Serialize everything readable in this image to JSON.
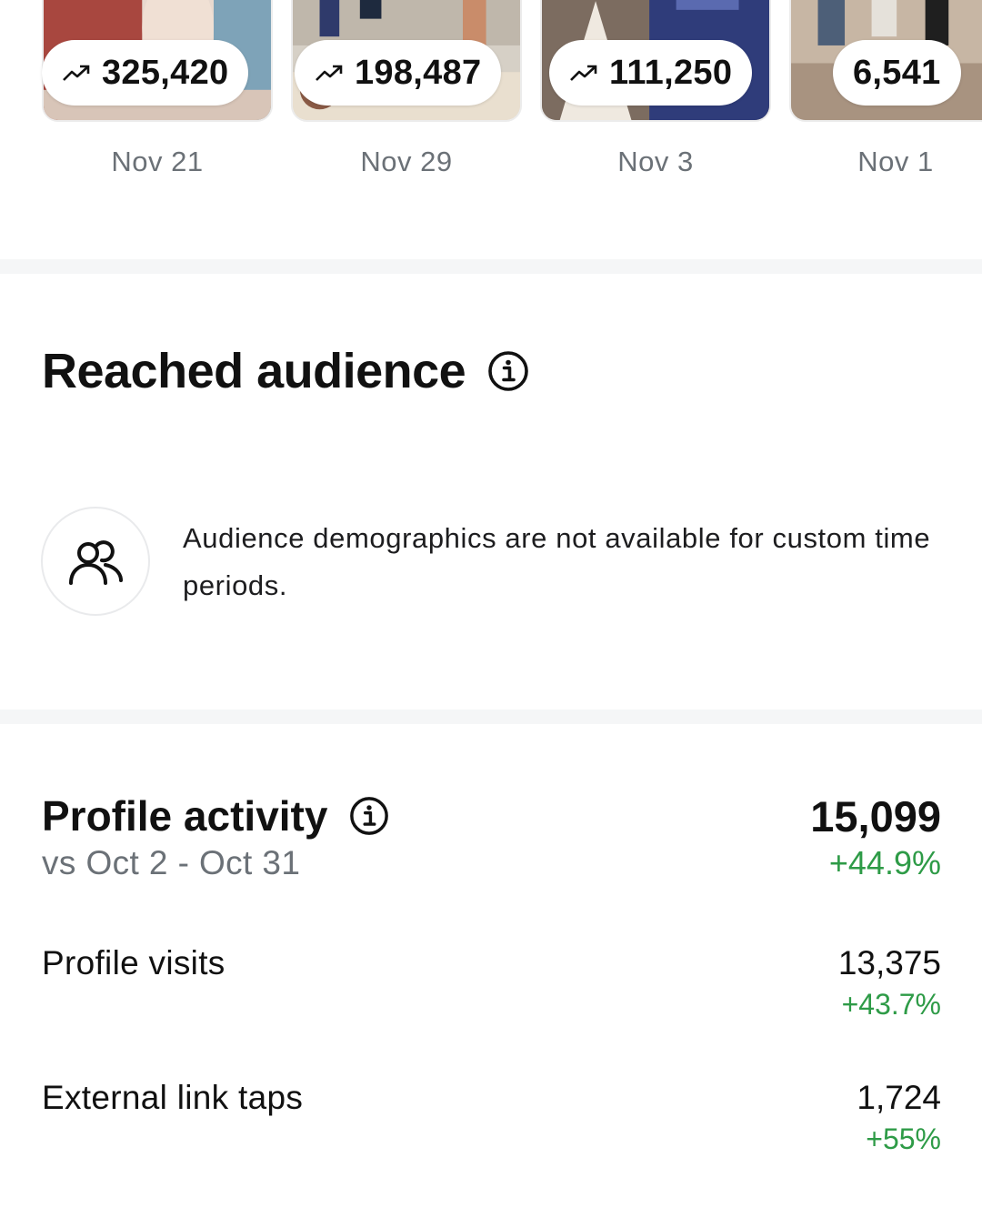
{
  "posts": [
    {
      "views": "325,420",
      "date": "Nov 21",
      "trending": true
    },
    {
      "views": "198,487",
      "date": "Nov 29",
      "trending": true
    },
    {
      "views": "111,250",
      "date": "Nov 3",
      "trending": true
    },
    {
      "views": "6,541",
      "date": "Nov 1",
      "trending": false
    }
  ],
  "reached_audience": {
    "title": "Reached audience",
    "message": "Audience demographics are not available for custom time periods."
  },
  "profile_activity": {
    "title": "Profile activity",
    "comparison": "vs Oct 2 - Oct 31",
    "total": "15,099",
    "total_change": "+44.9%",
    "rows": [
      {
        "label": "Profile visits",
        "value": "13,375",
        "change": "+43.7%"
      },
      {
        "label": "External link taps",
        "value": "1,724",
        "change": "+55%"
      }
    ]
  },
  "colors": {
    "positive": "#2e9b47",
    "muted_text": "#6b7177",
    "divider": "#f5f6f7"
  },
  "icons": [
    "trending-up-icon",
    "info-icon",
    "people-icon"
  ]
}
